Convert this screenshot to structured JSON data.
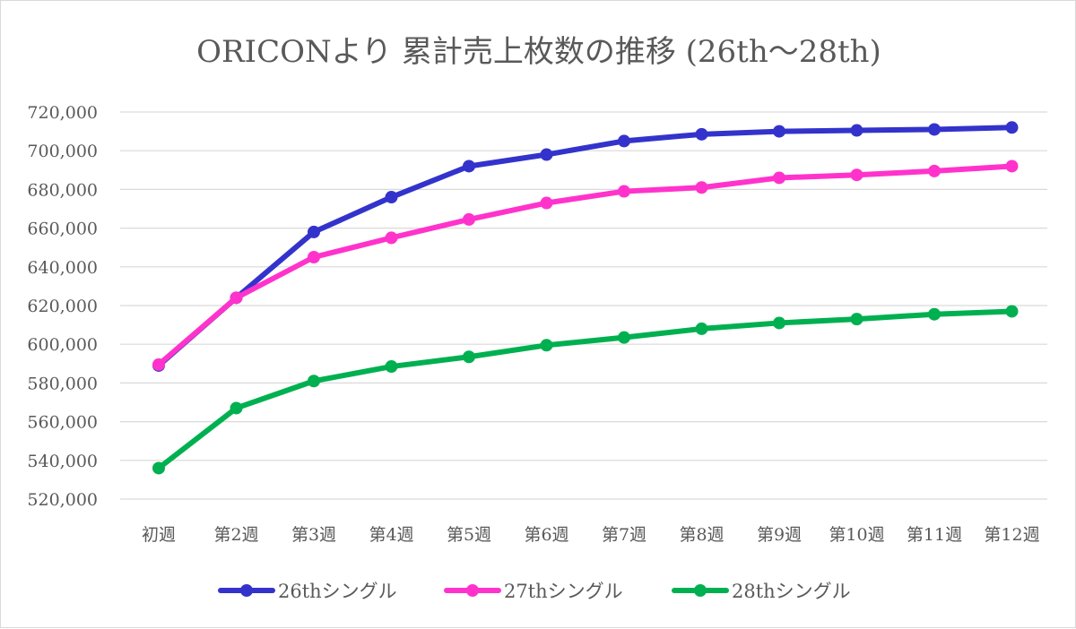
{
  "chart_data": {
    "type": "line",
    "title": "ORICONより 累計売上枚数の推移 (26th～28th)",
    "categories": [
      "初週",
      "第2週",
      "第3週",
      "第4週",
      "第5週",
      "第6週",
      "第7週",
      "第8週",
      "第9週",
      "第10週",
      "第11週",
      "第12週"
    ],
    "ylim": [
      520000,
      720000
    ],
    "yticks": [
      520000,
      540000,
      560000,
      580000,
      600000,
      620000,
      640000,
      660000,
      680000,
      700000,
      720000
    ],
    "ytick_labels": [
      "520,000",
      "540,000",
      "560,000",
      "580,000",
      "600,000",
      "620,000",
      "640,000",
      "660,000",
      "680,000",
      "700,000",
      "720,000"
    ],
    "grid": true,
    "legend_position": "bottom",
    "series": [
      {
        "name": "26thシングル",
        "color": "#3333cc",
        "values": [
          589000,
          624000,
          658000,
          676000,
          692000,
          698000,
          705000,
          708500,
          710000,
          710500,
          711000,
          712000
        ]
      },
      {
        "name": "27thシングル",
        "color": "#ff33cc",
        "values": [
          589500,
          624000,
          645000,
          655000,
          664500,
          673000,
          679000,
          681000,
          686000,
          687500,
          689500,
          692000
        ]
      },
      {
        "name": "28thシングル",
        "color": "#00b050",
        "values": [
          536000,
          567000,
          581000,
          588500,
          593500,
          599500,
          603500,
          608000,
          611000,
          613000,
          615500,
          617000
        ]
      }
    ]
  }
}
